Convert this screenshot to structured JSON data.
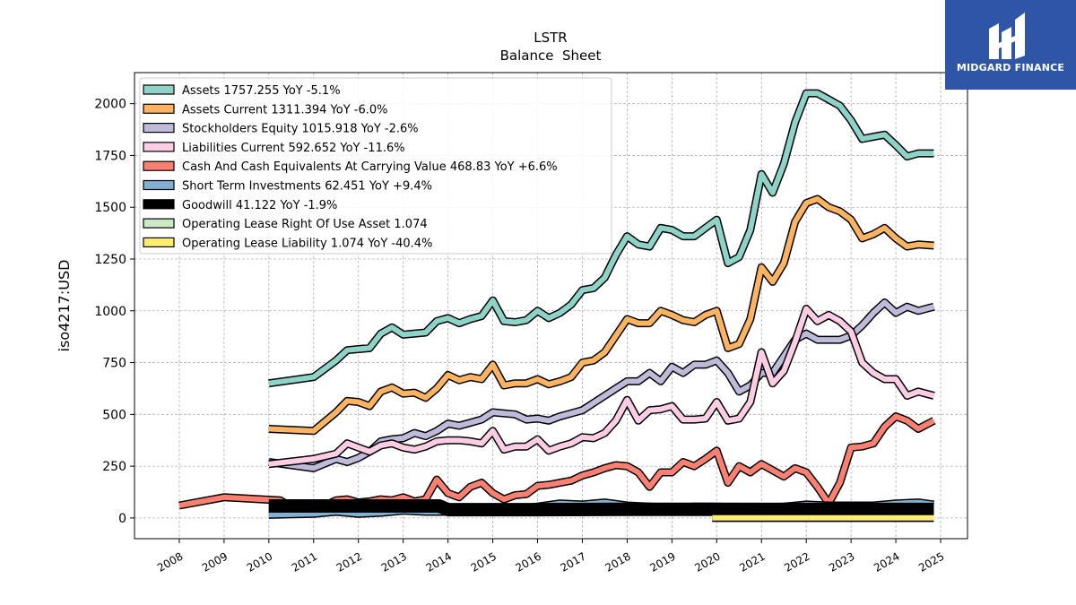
{
  "chart_data": {
    "type": "line",
    "title": "LSTR",
    "subtitle": "Balance  Sheet",
    "ylabel": "iso4217:USD",
    "xlabel": "",
    "xlim": [
      2007.0,
      2025.6
    ],
    "ylim": [
      -100,
      2150
    ],
    "yticks": [
      0,
      250,
      500,
      750,
      1000,
      1250,
      1500,
      1750,
      2000
    ],
    "xticks": [
      2008,
      2009,
      2010,
      2011,
      2012,
      2013,
      2014,
      2015,
      2016,
      2017,
      2018,
      2019,
      2020,
      2021,
      2022,
      2023,
      2024,
      2025
    ],
    "grid": true,
    "legend_position": "top-left",
    "series": [
      {
        "name": "Assets  1757.255 YoY -5.1%",
        "color": "#8dd3c7",
        "width": 6,
        "x": [
          2010.0,
          2011.0,
          2011.5,
          2011.75,
          2012.0,
          2012.25,
          2012.5,
          2012.75,
          2013.0,
          2013.5,
          2013.75,
          2014.0,
          2014.25,
          2014.5,
          2014.75,
          2015.0,
          2015.25,
          2015.5,
          2015.75,
          2016.0,
          2016.25,
          2016.5,
          2016.75,
          2017.0,
          2017.25,
          2017.5,
          2017.75,
          2018.0,
          2018.25,
          2018.5,
          2018.75,
          2019.0,
          2019.25,
          2019.5,
          2019.75,
          2020.0,
          2020.25,
          2020.5,
          2020.75,
          2021.0,
          2021.25,
          2021.5,
          2021.75,
          2022.0,
          2022.25,
          2022.5,
          2022.75,
          2023.0,
          2023.25,
          2023.5,
          2023.75,
          2024.0,
          2024.25,
          2024.5,
          2024.85
        ],
        "y": [
          650,
          680,
          760,
          810,
          815,
          820,
          890,
          920,
          885,
          895,
          950,
          965,
          940,
          960,
          975,
          1050,
          950,
          945,
          955,
          1000,
          965,
          990,
          1030,
          1100,
          1110,
          1160,
          1270,
          1360,
          1320,
          1310,
          1400,
          1390,
          1360,
          1360,
          1400,
          1440,
          1230,
          1260,
          1390,
          1660,
          1570,
          1710,
          1910,
          2050,
          2050,
          2020,
          1990,
          1920,
          1830,
          1840,
          1850,
          1800,
          1745,
          1760,
          1760
        ]
      },
      {
        "name": "Assets Current  1311.394 YoY -6.0%",
        "color": "#fdb462",
        "width": 6,
        "x": [
          2010.0,
          2011.0,
          2011.5,
          2011.75,
          2012.0,
          2012.25,
          2012.5,
          2012.75,
          2013.0,
          2013.25,
          2013.5,
          2013.75,
          2014.0,
          2014.25,
          2014.5,
          2014.75,
          2015.0,
          2015.25,
          2015.5,
          2015.75,
          2016.0,
          2016.25,
          2016.5,
          2016.75,
          2017.0,
          2017.25,
          2017.5,
          2017.75,
          2018.0,
          2018.25,
          2018.5,
          2018.75,
          2019.0,
          2019.25,
          2019.5,
          2019.75,
          2020.0,
          2020.25,
          2020.5,
          2020.75,
          2021.0,
          2021.25,
          2021.5,
          2021.75,
          2022.0,
          2022.25,
          2022.5,
          2022.75,
          2023.0,
          2023.25,
          2023.5,
          2023.75,
          2024.0,
          2024.25,
          2024.5,
          2024.85
        ],
        "y": [
          430,
          420,
          510,
          565,
          560,
          540,
          610,
          630,
          600,
          605,
          580,
          625,
          690,
          665,
          680,
          670,
          740,
          640,
          650,
          650,
          670,
          645,
          660,
          680,
          750,
          760,
          800,
          880,
          960,
          940,
          940,
          1000,
          980,
          955,
          945,
          980,
          1000,
          820,
          840,
          960,
          1210,
          1140,
          1230,
          1430,
          1520,
          1540,
          1500,
          1480,
          1440,
          1350,
          1370,
          1400,
          1350,
          1310,
          1320,
          1315
        ]
      },
      {
        "name": "Stockholders Equity  1015.918 YoY -2.6%",
        "color": "#bebada",
        "width": 6,
        "x": [
          2010.0,
          2011.0,
          2011.5,
          2011.75,
          2012.0,
          2012.25,
          2012.5,
          2012.75,
          2013.0,
          2013.25,
          2013.5,
          2013.75,
          2014.0,
          2014.25,
          2014.5,
          2014.75,
          2015.0,
          2015.25,
          2015.5,
          2015.75,
          2016.0,
          2016.25,
          2016.5,
          2016.75,
          2017.0,
          2017.25,
          2017.5,
          2017.75,
          2018.0,
          2018.25,
          2018.5,
          2018.75,
          2019.0,
          2019.25,
          2019.5,
          2019.75,
          2020.0,
          2020.25,
          2020.5,
          2020.75,
          2021.0,
          2021.25,
          2021.5,
          2021.75,
          2022.0,
          2022.25,
          2022.5,
          2022.75,
          2023.0,
          2023.25,
          2023.5,
          2023.75,
          2024.0,
          2024.25,
          2024.5,
          2024.85
        ],
        "y": [
          270,
          240,
          285,
          270,
          290,
          320,
          370,
          380,
          385,
          410,
          395,
          420,
          455,
          445,
          460,
          475,
          510,
          505,
          500,
          475,
          480,
          470,
          490,
          505,
          520,
          555,
          590,
          625,
          660,
          660,
          700,
          660,
          730,
          700,
          740,
          740,
          760,
          700,
          610,
          640,
          700,
          700,
          780,
          860,
          890,
          860,
          860,
          860,
          880,
          930,
          990,
          1040,
          990,
          1020,
          1000,
          1020
        ]
      },
      {
        "name": "Liabilities Current  592.652 YoY -11.6%",
        "color": "#fccde5",
        "width": 6,
        "x": [
          2010.0,
          2011.0,
          2011.5,
          2011.75,
          2012.0,
          2012.25,
          2012.5,
          2012.75,
          2013.0,
          2013.25,
          2013.5,
          2013.75,
          2014.0,
          2014.25,
          2014.5,
          2014.75,
          2015.0,
          2015.25,
          2015.5,
          2015.75,
          2016.0,
          2016.25,
          2016.5,
          2016.75,
          2017.0,
          2017.25,
          2017.5,
          2017.75,
          2018.0,
          2018.25,
          2018.5,
          2018.75,
          2019.0,
          2019.25,
          2019.5,
          2019.75,
          2020.0,
          2020.25,
          2020.5,
          2020.75,
          2021.0,
          2021.25,
          2021.5,
          2021.75,
          2022.0,
          2022.25,
          2022.5,
          2022.75,
          2023.0,
          2023.25,
          2023.5,
          2023.75,
          2024.0,
          2024.25,
          2024.5,
          2024.85
        ],
        "y": [
          260,
          285,
          310,
          360,
          340,
          320,
          350,
          360,
          340,
          330,
          345,
          370,
          375,
          375,
          370,
          360,
          420,
          330,
          345,
          345,
          380,
          325,
          345,
          360,
          390,
          385,
          410,
          470,
          570,
          470,
          520,
          525,
          540,
          475,
          475,
          480,
          560,
          470,
          480,
          560,
          800,
          650,
          710,
          850,
          1010,
          950,
          980,
          950,
          900,
          750,
          700,
          670,
          670,
          590,
          610,
          590
        ]
      },
      {
        "name": "Cash And Cash Equivalents At Carrying Value  468.83 YoY +6.6%",
        "color": "#fb8072",
        "width": 6,
        "x": [
          2008.0,
          2009.0,
          2010.25,
          2010.5,
          2010.75,
          2011.0,
          2011.25,
          2011.5,
          2011.75,
          2012.0,
          2012.25,
          2012.5,
          2012.75,
          2013.0,
          2013.25,
          2013.5,
          2013.75,
          2014.0,
          2014.25,
          2014.5,
          2014.75,
          2015.0,
          2015.25,
          2015.5,
          2015.75,
          2016.0,
          2016.25,
          2016.5,
          2016.75,
          2017.0,
          2017.25,
          2017.5,
          2017.75,
          2018.0,
          2018.25,
          2018.5,
          2018.75,
          2019.0,
          2019.25,
          2019.5,
          2019.75,
          2020.0,
          2020.25,
          2020.5,
          2020.75,
          2021.0,
          2021.25,
          2021.5,
          2021.75,
          2022.0,
          2022.25,
          2022.5,
          2022.75,
          2023.0,
          2023.25,
          2023.5,
          2023.75,
          2024.0,
          2024.25,
          2024.5,
          2024.85
        ],
        "y": [
          60,
          100,
          85,
          55,
          60,
          55,
          60,
          85,
          90,
          75,
          80,
          90,
          85,
          100,
          80,
          90,
          185,
          120,
          100,
          150,
          170,
          120,
          90,
          110,
          115,
          155,
          160,
          170,
          180,
          205,
          220,
          240,
          255,
          250,
          220,
          150,
          220,
          220,
          270,
          250,
          285,
          325,
          170,
          250,
          220,
          260,
          230,
          200,
          240,
          220,
          150,
          70,
          170,
          340,
          345,
          360,
          440,
          490,
          470,
          430,
          470
        ]
      },
      {
        "name": "Short Term Investments  62.451 YoY +9.4%",
        "color": "#80b1d3",
        "width": 6,
        "x": [
          2010.0,
          2011.0,
          2011.5,
          2012.0,
          2012.5,
          2013.0,
          2013.5,
          2014.0,
          2014.5,
          2015.0,
          2015.5,
          2016.0,
          2016.5,
          2017.0,
          2017.5,
          2018.0,
          2018.5,
          2019.0,
          2019.5,
          2020.0,
          2020.5,
          2021.0,
          2021.5,
          2022.0,
          2022.5,
          2023.0,
          2023.5,
          2024.0,
          2024.5,
          2024.85
        ],
        "y": [
          15,
          20,
          30,
          20,
          25,
          35,
          30,
          30,
          35,
          40,
          45,
          55,
          70,
          65,
          75,
          60,
          55,
          50,
          55,
          55,
          50,
          50,
          55,
          65,
          60,
          60,
          60,
          70,
          75,
          65
        ]
      },
      {
        "name": "Goodwill  41.122 YoY -1.9%",
        "color": "#000000",
        "width": 12,
        "x": [
          2010.0,
          2013.8,
          2014.0,
          2016.0,
          2018.0,
          2020.0,
          2022.0,
          2024.85
        ],
        "y": [
          58,
          58,
          40,
          40,
          42,
          42,
          41,
          41
        ]
      },
      {
        "name": "Operating Lease Right Of Use Asset  1.074",
        "color": "#ccebc5",
        "width": 6,
        "x": [
          2019.9,
          2024.85
        ],
        "y": [
          1,
          1
        ]
      },
      {
        "name": "Operating Lease Liability  1.074 YoY -40.4%",
        "color": "#ffed6f",
        "width": 6,
        "x": [
          2019.9,
          2024.85
        ],
        "y": [
          1,
          1
        ]
      }
    ]
  },
  "logo": {
    "text": "MIDGARD FINANCE",
    "bg_color": "#2f56a6"
  }
}
